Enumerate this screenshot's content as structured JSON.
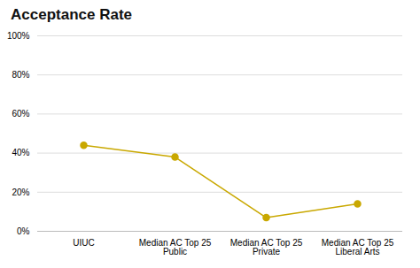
{
  "chart_data": {
    "type": "line",
    "title": "Acceptance Rate",
    "categories": [
      "UIUC",
      "Median AC Top 25\nPublic",
      "Median AC Top 25\nPrivate",
      "Median AC Top 25\nLiberal Arts"
    ],
    "values": [
      44,
      38,
      7,
      14
    ],
    "color": "#c9a800",
    "marker": "circle",
    "ylim": [
      0,
      100
    ],
    "yticks": [
      {
        "value": 0,
        "label": "0%"
      },
      {
        "value": 20,
        "label": "20%"
      },
      {
        "value": 40,
        "label": "40%"
      },
      {
        "value": 60,
        "label": "60%"
      },
      {
        "value": 80,
        "label": "80%"
      },
      {
        "value": 100,
        "label": "100%"
      }
    ],
    "grid": true
  }
}
